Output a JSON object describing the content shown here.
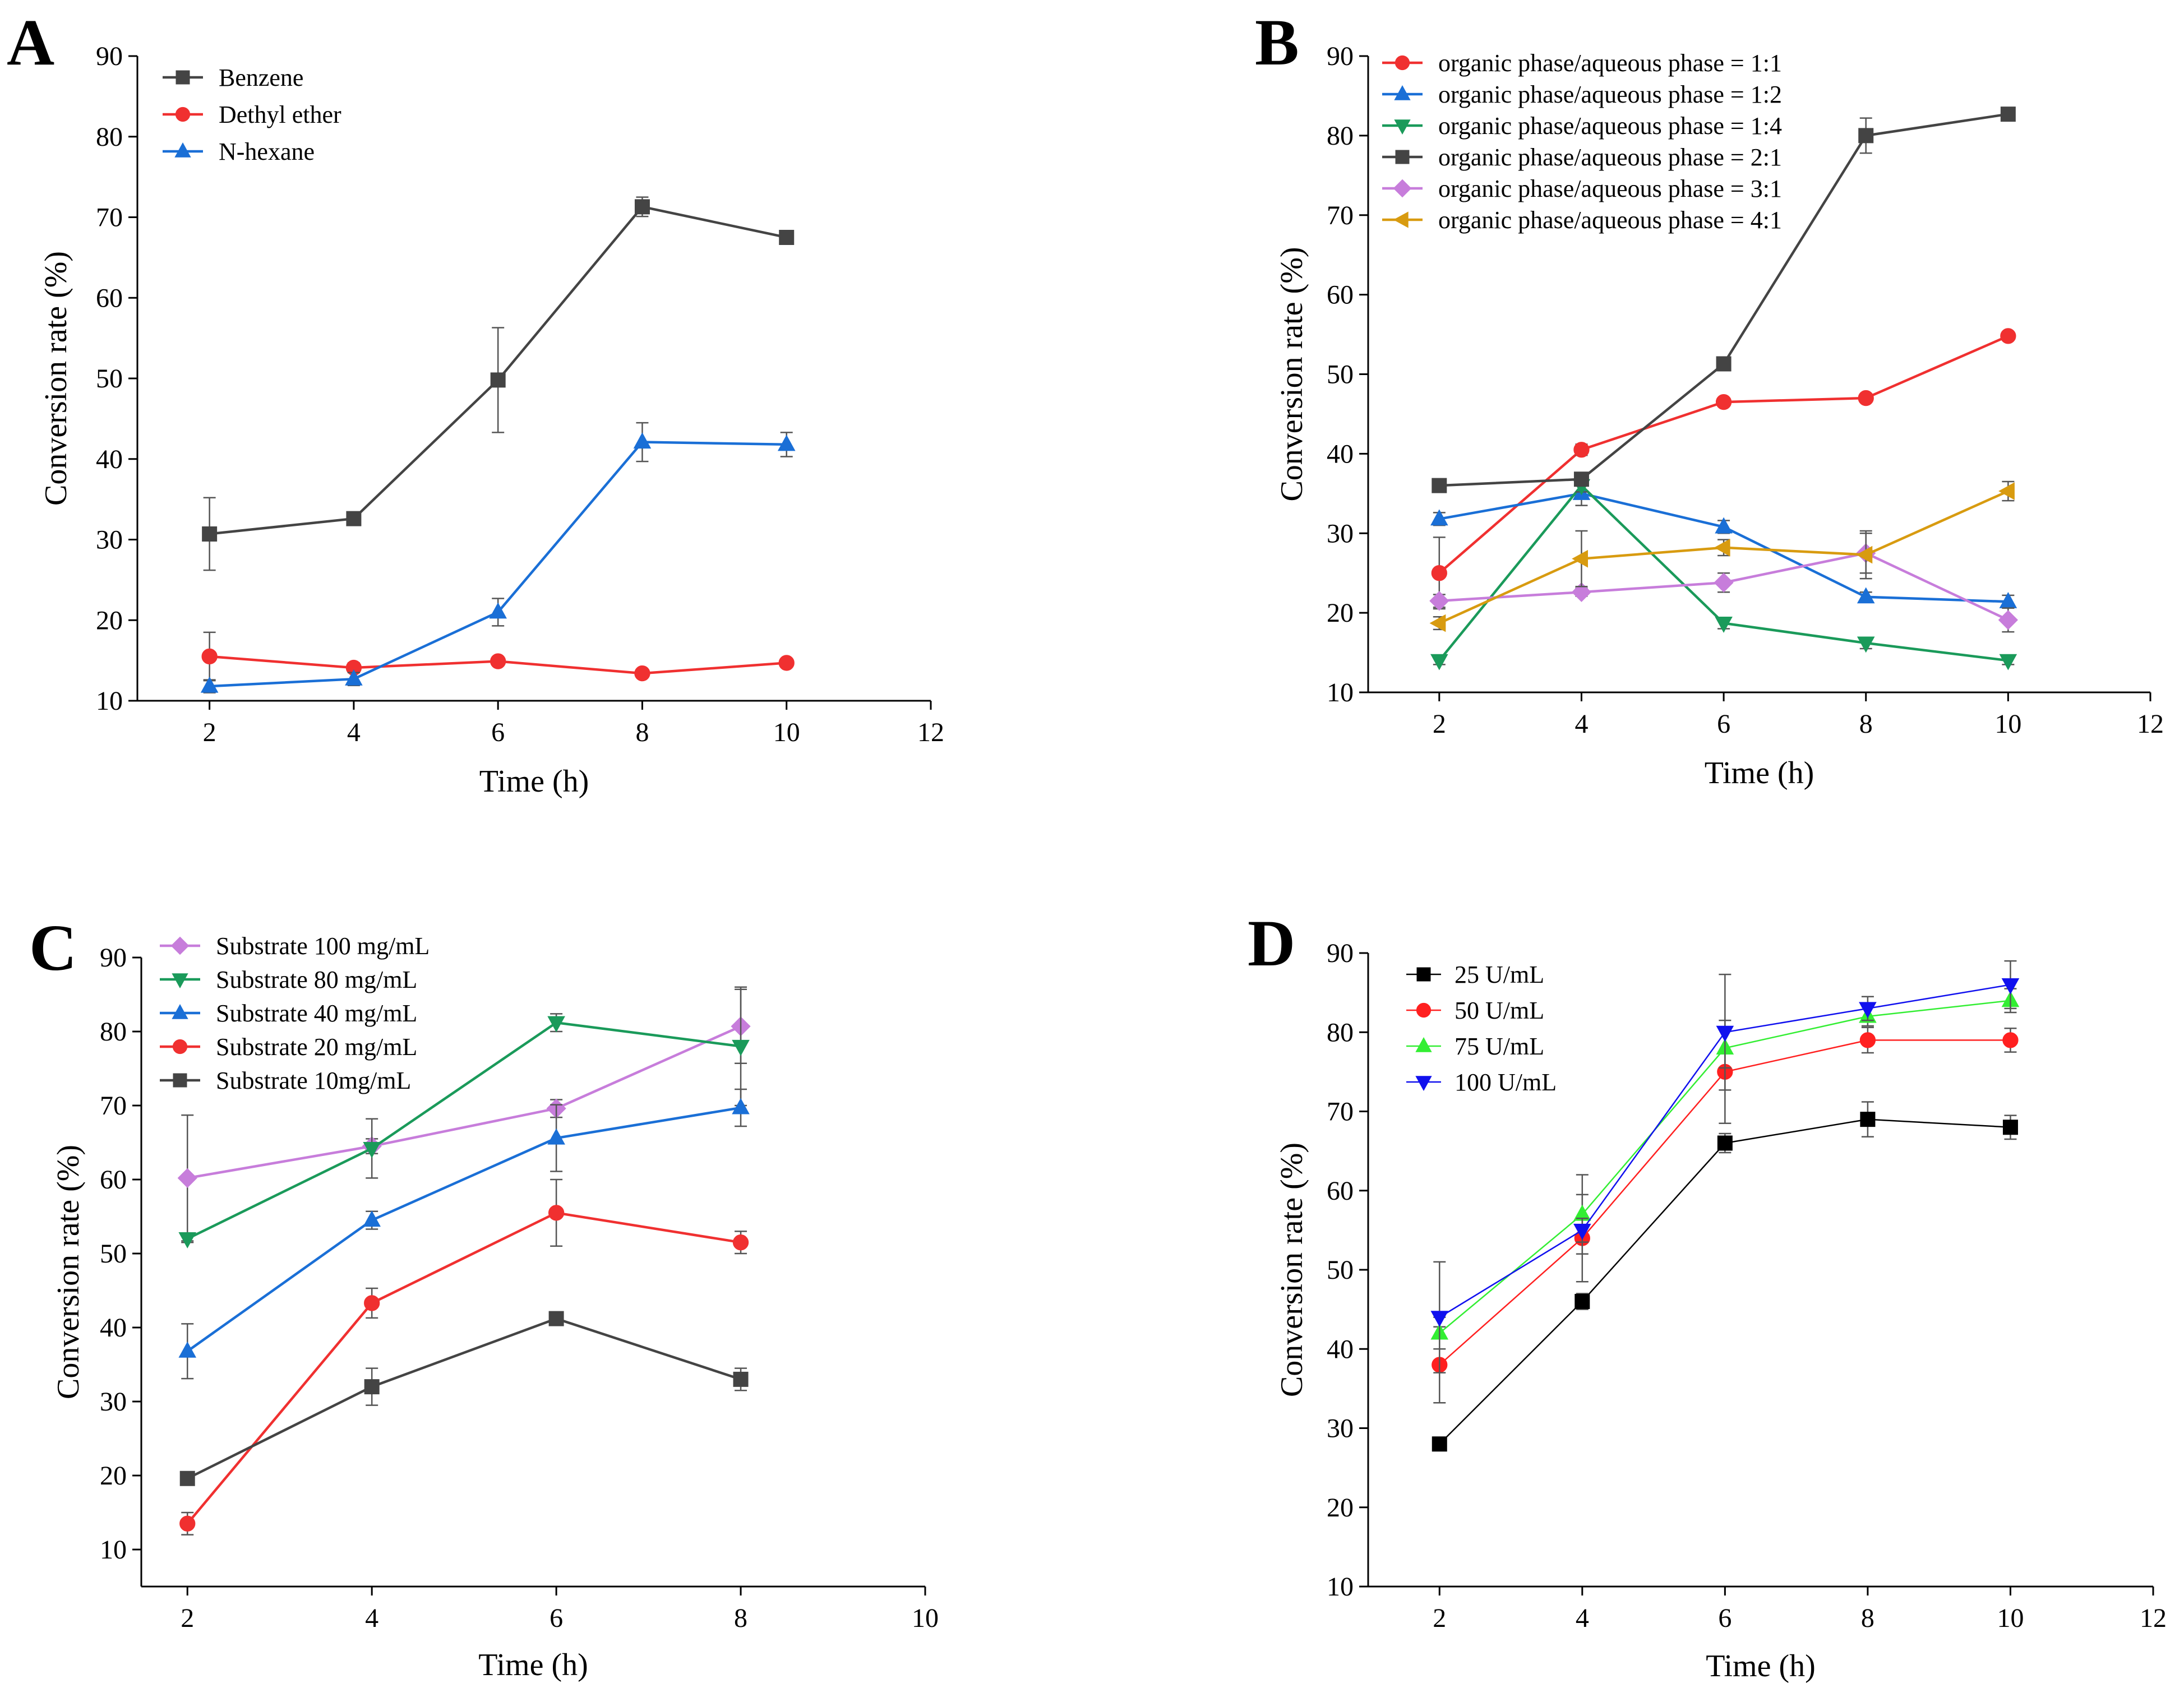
{
  "chart_data": [
    {
      "panel": "A",
      "type": "line",
      "xlabel": "Time (h)",
      "ylabel": "Conversion rate (%)",
      "xlim": [
        1,
        12
      ],
      "ylim": [
        10,
        90
      ],
      "xticks": [
        2,
        4,
        6,
        8,
        10,
        12
      ],
      "yticks": [
        10,
        20,
        30,
        40,
        50,
        60,
        70,
        80,
        90
      ],
      "legend_position": "top-left",
      "x": [
        2,
        4,
        6,
        8,
        10
      ],
      "series": [
        {
          "name": "Benzene",
          "color": "#444444",
          "marker": "square",
          "values": [
            30.7,
            32.6,
            49.8,
            71.3,
            67.5
          ],
          "errors": [
            4.5,
            0.6,
            6.5,
            1.2,
            0.6
          ]
        },
        {
          "name": "Dethyl ether",
          "color": "#f03030",
          "marker": "circle",
          "values": [
            15.5,
            14.1,
            14.9,
            13.4,
            14.7
          ],
          "errors": [
            3.0,
            0.6,
            0.5,
            0.5,
            0.5
          ]
        },
        {
          "name": "N-hexane",
          "color": "#1a6fd6",
          "marker": "triangle-up",
          "values": [
            11.8,
            12.7,
            21.0,
            42.1,
            41.8
          ],
          "errors": [
            0.8,
            0.8,
            1.7,
            2.4,
            1.5
          ]
        }
      ]
    },
    {
      "panel": "B",
      "type": "line",
      "xlabel": "Time (h)",
      "ylabel": "Conversion rate (%)",
      "xlim": [
        1,
        12
      ],
      "ylim": [
        10,
        90
      ],
      "xticks": [
        2,
        4,
        6,
        8,
        10,
        12
      ],
      "yticks": [
        10,
        20,
        30,
        40,
        50,
        60,
        70,
        80,
        90
      ],
      "legend_position": "top-left",
      "x": [
        2,
        4,
        6,
        8,
        10
      ],
      "series": [
        {
          "name": "organic phase/aqueous phase = 1:1",
          "color": "#f03030",
          "marker": "circle",
          "values": [
            25.0,
            40.5,
            46.5,
            47.0,
            54.8
          ],
          "errors": [
            4.5,
            0.7,
            0.5,
            0.5,
            0.5
          ]
        },
        {
          "name": "organic phase/aqueous phase = 1:2",
          "color": "#1a6fd6",
          "marker": "triangle-up",
          "values": [
            31.8,
            35.0,
            30.8,
            22.0,
            21.4
          ],
          "errors": [
            0.8,
            1.5,
            0.8,
            0.6,
            0.8
          ]
        },
        {
          "name": "organic phase/aqueous phase = 1:4",
          "color": "#1a9a5a",
          "marker": "triangle-down",
          "values": [
            14.0,
            36.0,
            18.7,
            16.2,
            14.0
          ],
          "errors": [
            0.5,
            0.8,
            0.7,
            0.7,
            0.5
          ]
        },
        {
          "name": "organic phase/aqueous phase = 2:1",
          "color": "#444444",
          "marker": "square",
          "values": [
            36.0,
            36.8,
            51.3,
            80.0,
            82.7
          ],
          "errors": [
            0.4,
            0.8,
            0.5,
            2.2,
            0.5
          ]
        },
        {
          "name": "organic phase/aqueous phase = 3:1",
          "color": "#c77ddb",
          "marker": "diamond",
          "values": [
            21.5,
            22.6,
            23.8,
            27.5,
            19.1
          ],
          "errors": [
            0.8,
            0.5,
            1.2,
            2.5,
            1.5
          ]
        },
        {
          "name": "organic phase/aqueous phase = 4:1",
          "color": "#d89b10",
          "marker": "triangle-left",
          "values": [
            18.7,
            26.8,
            28.2,
            27.3,
            35.3
          ],
          "errors": [
            0.8,
            3.5,
            1.0,
            3.0,
            1.2
          ]
        }
      ]
    },
    {
      "panel": "C",
      "type": "line",
      "xlabel": "Time (h)",
      "ylabel": "Conversion rate (%)",
      "xlim": [
        1.5,
        10
      ],
      "ylim": [
        5,
        90
      ],
      "xticks": [
        2,
        4,
        6,
        8,
        10
      ],
      "yticks": [
        10,
        20,
        30,
        40,
        50,
        60,
        70,
        80,
        90
      ],
      "legend_position": "top-left",
      "x": [
        2,
        4,
        6,
        8
      ],
      "series": [
        {
          "name": "Substrate 100 mg/mL",
          "color": "#c77ddb",
          "marker": "diamond",
          "values": [
            60.2,
            64.5,
            69.6,
            80.7
          ],
          "errors": [
            8.5,
            1.0,
            1.2,
            5.0
          ]
        },
        {
          "name": "Substrate 80 mg/mL",
          "color": "#1a9a5a",
          "marker": "triangle-down",
          "values": [
            52.0,
            64.2,
            81.2,
            78.0
          ],
          "errors": [
            0.5,
            4.0,
            1.2,
            8.0
          ]
        },
        {
          "name": "Substrate 40 mg/mL",
          "color": "#1a6fd6",
          "marker": "triangle-up",
          "values": [
            36.8,
            54.5,
            65.6,
            69.7
          ],
          "errors": [
            3.7,
            1.2,
            4.5,
            2.5
          ]
        },
        {
          "name": "Substrate 20 mg/mL",
          "color": "#f03030",
          "marker": "circle",
          "values": [
            13.5,
            43.3,
            55.5,
            51.5
          ],
          "errors": [
            1.5,
            2.0,
            4.5,
            1.5
          ]
        },
        {
          "name": "Substrate 10mg/mL",
          "color": "#444444",
          "marker": "square",
          "values": [
            19.6,
            32.0,
            41.2,
            33.0
          ],
          "errors": [
            0.5,
            2.5,
            0.5,
            1.5
          ]
        }
      ]
    },
    {
      "panel": "D",
      "type": "line",
      "xlabel": "Time (h)",
      "ylabel": "Conversion rate (%)",
      "xlim": [
        1,
        12
      ],
      "ylim": [
        10,
        90
      ],
      "xticks": [
        2,
        4,
        6,
        8,
        10,
        12
      ],
      "yticks": [
        10,
        20,
        30,
        40,
        50,
        60,
        70,
        80,
        90
      ],
      "legend_position": "top-left",
      "x": [
        2,
        4,
        6,
        8,
        10
      ],
      "series": [
        {
          "name": "25 U/mL",
          "color": "#000000",
          "marker": "square",
          "values": [
            28.0,
            46.0,
            66.0,
            69.0,
            68.0
          ],
          "errors": [
            0.5,
            1.0,
            1.2,
            2.2,
            1.5
          ]
        },
        {
          "name": "50 U/mL",
          "color": "#ff2020",
          "marker": "circle",
          "values": [
            38.0,
            54.0,
            75.0,
            79.0,
            79.0
          ],
          "errors": [
            4.8,
            5.5,
            6.5,
            1.6,
            1.5
          ]
        },
        {
          "name": "75 U/mL",
          "color": "#33ee33",
          "marker": "triangle-up",
          "values": [
            42.0,
            57.0,
            78.0,
            82.0,
            84.0
          ],
          "errors": [
            2.0,
            5.0,
            2.5,
            1.2,
            1.5
          ]
        },
        {
          "name": "100 U/mL",
          "color": "#1010ee",
          "marker": "triangle-down",
          "values": [
            44.0,
            55.0,
            80.0,
            83.0,
            86.0
          ],
          "errors": [
            7.0,
            1.5,
            7.3,
            1.5,
            3.0
          ]
        }
      ]
    }
  ]
}
